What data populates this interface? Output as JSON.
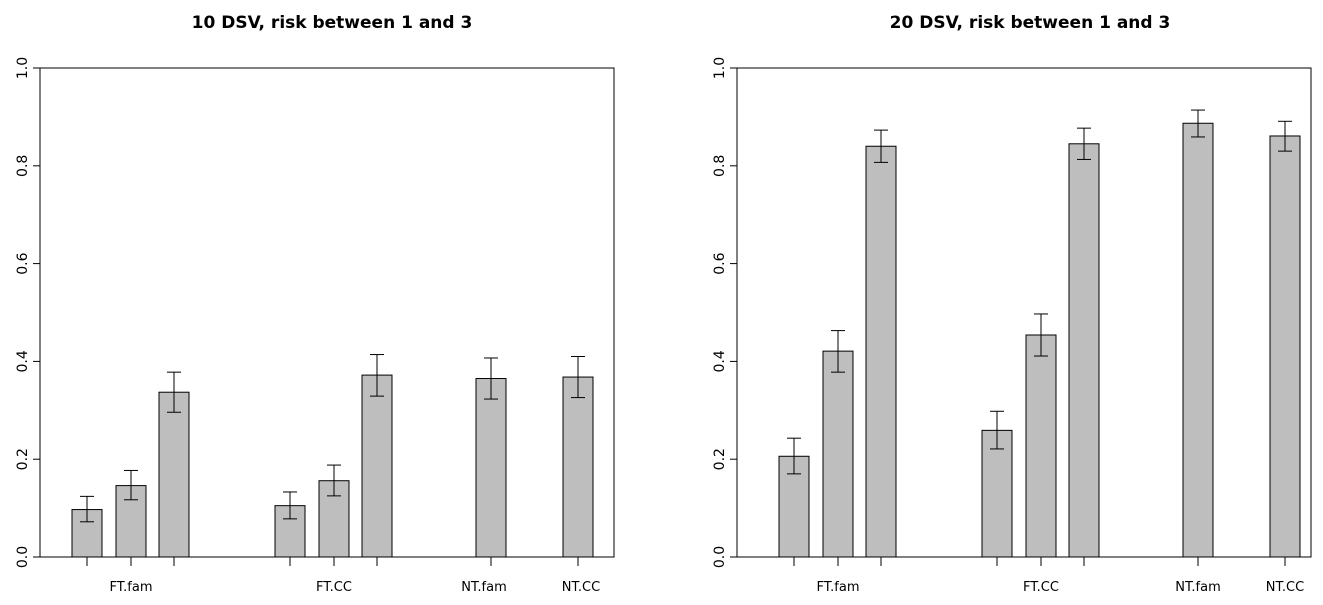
{
  "chart_data": [
    {
      "type": "bar",
      "title": "10 DSV, risk between 1 and 3",
      "xlabel": "",
      "ylabel": "",
      "ylim": [
        0,
        1
      ],
      "yticks": [
        "0.0",
        "0.2",
        "0.4",
        "0.6",
        "0.8",
        "1.0"
      ],
      "categories": [
        "FT.fam",
        "FT.CC",
        "NT.fam",
        "NT.CC"
      ],
      "groups": [
        {
          "category": "FT.fam",
          "values": [
            0.097,
            0.146,
            0.337
          ],
          "lower": [
            0.072,
            0.117,
            0.296
          ],
          "upper": [
            0.124,
            0.177,
            0.378
          ]
        },
        {
          "category": "FT.CC",
          "values": [
            0.105,
            0.156,
            0.372
          ],
          "lower": [
            0.078,
            0.125,
            0.329
          ],
          "upper": [
            0.133,
            0.188,
            0.414
          ]
        },
        {
          "category": "NT.fam",
          "values": [
            0.365
          ],
          "lower": [
            0.323
          ],
          "upper": [
            0.407
          ]
        },
        {
          "category": "NT.CC",
          "values": [
            0.368
          ],
          "lower": [
            0.326
          ],
          "upper": [
            0.41
          ]
        }
      ],
      "bar_color": "#bebebe",
      "grid": false
    },
    {
      "type": "bar",
      "title": "20 DSV, risk between 1 and 3",
      "xlabel": "",
      "ylabel": "",
      "ylim": [
        0,
        1
      ],
      "yticks": [
        "0.0",
        "0.2",
        "0.4",
        "0.6",
        "0.8",
        "1.0"
      ],
      "categories": [
        "FT.fam",
        "FT.CC",
        "NT.fam",
        "NT.CC"
      ],
      "groups": [
        {
          "category": "FT.fam",
          "values": [
            0.206,
            0.421,
            0.84
          ],
          "lower": [
            0.17,
            0.378,
            0.807
          ],
          "upper": [
            0.243,
            0.463,
            0.873
          ]
        },
        {
          "category": "FT.CC",
          "values": [
            0.259,
            0.454,
            0.845
          ],
          "lower": [
            0.221,
            0.411,
            0.813
          ],
          "upper": [
            0.298,
            0.497,
            0.877
          ]
        },
        {
          "category": "NT.fam",
          "values": [
            0.887
          ],
          "lower": [
            0.859
          ],
          "upper": [
            0.914
          ]
        },
        {
          "category": "NT.CC",
          "values": [
            0.861
          ],
          "lower": [
            0.83
          ],
          "upper": [
            0.891
          ]
        }
      ],
      "bar_color": "#bebebe",
      "grid": false
    }
  ]
}
